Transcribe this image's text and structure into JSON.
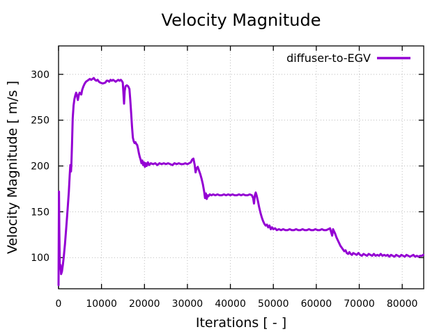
{
  "chart_data": {
    "type": "line",
    "title": "Velocity Magnitude",
    "xlabel": "Iterations [ - ]",
    "ylabel": "Velocity Magnitude [ m/s ]",
    "xlim": [
      0,
      85000
    ],
    "ylim": [
      66,
      331
    ],
    "x_ticks": [
      0,
      10000,
      20000,
      30000,
      40000,
      50000,
      60000,
      70000,
      80000
    ],
    "y_ticks": [
      100,
      150,
      200,
      250,
      300
    ],
    "grid": true,
    "grid_style": "dotted",
    "grid_color": "#bbbbbb",
    "axis_color": "#000000",
    "background_color": "#ffffff",
    "legend_position": "top-right-inside",
    "series": [
      {
        "name": "diffuser-to-EGV",
        "color": "#9400d3",
        "points": [
          [
            0,
            70
          ],
          [
            100,
            172
          ],
          [
            180,
            130
          ],
          [
            300,
            88
          ],
          [
            450,
            92
          ],
          [
            600,
            82
          ],
          [
            800,
            85
          ],
          [
            1000,
            92
          ],
          [
            1200,
            100
          ],
          [
            1500,
            115
          ],
          [
            1800,
            133
          ],
          [
            2100,
            152
          ],
          [
            2400,
            172
          ],
          [
            2600,
            190
          ],
          [
            2750,
            201
          ],
          [
            2900,
            194
          ],
          [
            3000,
            203
          ],
          [
            3150,
            226
          ],
          [
            3300,
            252
          ],
          [
            3500,
            266
          ],
          [
            3700,
            273
          ],
          [
            3900,
            277
          ],
          [
            4100,
            280
          ],
          [
            4300,
            277
          ],
          [
            4500,
            272
          ],
          [
            4700,
            277
          ],
          [
            4900,
            280
          ],
          [
            5100,
            279
          ],
          [
            5300,
            278
          ],
          [
            5500,
            283
          ],
          [
            5800,
            287
          ],
          [
            6100,
            290
          ],
          [
            6400,
            292
          ],
          [
            6700,
            293
          ],
          [
            7000,
            294
          ],
          [
            7300,
            295
          ],
          [
            7600,
            294
          ],
          [
            7900,
            295
          ],
          [
            8200,
            296
          ],
          [
            8500,
            294
          ],
          [
            8800,
            293
          ],
          [
            9100,
            294
          ],
          [
            9400,
            292
          ],
          [
            9700,
            291
          ],
          [
            10300,
            290
          ],
          [
            10900,
            291
          ],
          [
            11200,
            293
          ],
          [
            11500,
            293
          ],
          [
            11800,
            292
          ],
          [
            12100,
            294
          ],
          [
            12400,
            293
          ],
          [
            12700,
            294
          ],
          [
            13000,
            293
          ],
          [
            13300,
            292
          ],
          [
            13600,
            293
          ],
          [
            13900,
            294
          ],
          [
            14200,
            293
          ],
          [
            14500,
            294
          ],
          [
            14700,
            293
          ],
          [
            14950,
            291
          ],
          [
            15100,
            280
          ],
          [
            15250,
            268
          ],
          [
            15400,
            282
          ],
          [
            15600,
            287
          ],
          [
            15900,
            288
          ],
          [
            16200,
            287
          ],
          [
            16500,
            284
          ],
          [
            16700,
            272
          ],
          [
            16900,
            258
          ],
          [
            17100,
            243
          ],
          [
            17300,
            231
          ],
          [
            17500,
            227
          ],
          [
            17700,
            225
          ],
          [
            17900,
            226
          ],
          [
            18100,
            224
          ],
          [
            18300,
            223
          ],
          [
            18500,
            219
          ],
          [
            18700,
            214
          ],
          [
            18900,
            210
          ],
          [
            19100,
            207
          ],
          [
            19300,
            203
          ],
          [
            19500,
            206
          ],
          [
            19700,
            201
          ],
          [
            19900,
            204
          ],
          [
            20100,
            199
          ],
          [
            20300,
            203
          ],
          [
            20500,
            200
          ],
          [
            20800,
            204
          ],
          [
            21100,
            201
          ],
          [
            21500,
            203
          ],
          [
            22000,
            202
          ],
          [
            22500,
            203
          ],
          [
            23000,
            201
          ],
          [
            23500,
            203
          ],
          [
            24000,
            202
          ],
          [
            24500,
            203
          ],
          [
            25000,
            202
          ],
          [
            25500,
            203
          ],
          [
            26000,
            202
          ],
          [
            26500,
            201
          ],
          [
            27000,
            203
          ],
          [
            27500,
            202
          ],
          [
            28000,
            203
          ],
          [
            28500,
            202
          ],
          [
            29000,
            202
          ],
          [
            29500,
            203
          ],
          [
            30000,
            202
          ],
          [
            30400,
            203
          ],
          [
            30800,
            204
          ],
          [
            31100,
            207
          ],
          [
            31400,
            208
          ],
          [
            31700,
            201
          ],
          [
            31900,
            193
          ],
          [
            32100,
            197
          ],
          [
            32400,
            199
          ],
          [
            32700,
            195
          ],
          [
            33000,
            191
          ],
          [
            33300,
            186
          ],
          [
            33600,
            180
          ],
          [
            33900,
            172
          ],
          [
            34100,
            165
          ],
          [
            34300,
            170
          ],
          [
            34500,
            164
          ],
          [
            34700,
            168
          ],
          [
            34900,
            167
          ],
          [
            35200,
            169
          ],
          [
            35600,
            168
          ],
          [
            36000,
            169
          ],
          [
            36500,
            168
          ],
          [
            37000,
            169
          ],
          [
            37500,
            168
          ],
          [
            38000,
            168
          ],
          [
            38500,
            169
          ],
          [
            39000,
            168
          ],
          [
            39500,
            169
          ],
          [
            40000,
            168
          ],
          [
            40500,
            169
          ],
          [
            41000,
            168
          ],
          [
            41500,
            168
          ],
          [
            42000,
            169
          ],
          [
            42500,
            168
          ],
          [
            43000,
            169
          ],
          [
            43500,
            168
          ],
          [
            44000,
            168
          ],
          [
            44500,
            169
          ],
          [
            45000,
            168
          ],
          [
            45300,
            165
          ],
          [
            45500,
            159
          ],
          [
            45700,
            168
          ],
          [
            45900,
            171
          ],
          [
            46100,
            168
          ],
          [
            46400,
            162
          ],
          [
            46700,
            155
          ],
          [
            47000,
            149
          ],
          [
            47300,
            144
          ],
          [
            47600,
            140
          ],
          [
            47900,
            137
          ],
          [
            48200,
            135
          ],
          [
            48500,
            136
          ],
          [
            48800,
            133
          ],
          [
            49100,
            135
          ],
          [
            49400,
            131
          ],
          [
            49700,
            133
          ],
          [
            50000,
            131
          ],
          [
            50400,
            132
          ],
          [
            50800,
            130
          ],
          [
            51300,
            131
          ],
          [
            51800,
            130
          ],
          [
            52300,
            131
          ],
          [
            52800,
            130
          ],
          [
            53300,
            130
          ],
          [
            53800,
            131
          ],
          [
            54300,
            130
          ],
          [
            54800,
            130
          ],
          [
            55300,
            131
          ],
          [
            55800,
            130
          ],
          [
            56300,
            130
          ],
          [
            56800,
            131
          ],
          [
            57300,
            130
          ],
          [
            57800,
            130
          ],
          [
            58300,
            131
          ],
          [
            58800,
            130
          ],
          [
            59300,
            130
          ],
          [
            59800,
            131
          ],
          [
            60300,
            130
          ],
          [
            60800,
            130
          ],
          [
            61300,
            131
          ],
          [
            61800,
            130
          ],
          [
            62300,
            130
          ],
          [
            62800,
            131
          ],
          [
            63200,
            132
          ],
          [
            63500,
            127
          ],
          [
            63700,
            124
          ],
          [
            63900,
            131
          ],
          [
            64100,
            129
          ],
          [
            64400,
            126
          ],
          [
            64700,
            122
          ],
          [
            65000,
            119
          ],
          [
            65300,
            116
          ],
          [
            65600,
            113
          ],
          [
            65900,
            111
          ],
          [
            66200,
            109
          ],
          [
            66500,
            107
          ],
          [
            66800,
            108
          ],
          [
            67100,
            105
          ],
          [
            67400,
            104
          ],
          [
            67700,
            106
          ],
          [
            68000,
            104
          ],
          [
            68300,
            103
          ],
          [
            68600,
            105
          ],
          [
            69000,
            104
          ],
          [
            69400,
            103
          ],
          [
            69800,
            105
          ],
          [
            70200,
            103
          ],
          [
            70600,
            102
          ],
          [
            71000,
            104
          ],
          [
            71400,
            103
          ],
          [
            71800,
            102
          ],
          [
            72200,
            104
          ],
          [
            72600,
            103
          ],
          [
            73000,
            102
          ],
          [
            73400,
            104
          ],
          [
            73800,
            102
          ],
          [
            74200,
            103
          ],
          [
            74600,
            102
          ],
          [
            75000,
            104
          ],
          [
            75400,
            102
          ],
          [
            75800,
            103
          ],
          [
            76200,
            102
          ],
          [
            76600,
            103
          ],
          [
            77000,
            101
          ],
          [
            77400,
            103
          ],
          [
            77800,
            102
          ],
          [
            78200,
            101
          ],
          [
            78600,
            103
          ],
          [
            79000,
            102
          ],
          [
            79400,
            101
          ],
          [
            79800,
            103
          ],
          [
            80200,
            102
          ],
          [
            80600,
            101
          ],
          [
            81000,
            103
          ],
          [
            81400,
            102
          ],
          [
            81800,
            101
          ],
          [
            82200,
            102
          ],
          [
            82600,
            103
          ],
          [
            83000,
            101
          ],
          [
            83400,
            102
          ],
          [
            83800,
            101
          ],
          [
            84200,
            102
          ],
          [
            84600,
            102
          ],
          [
            84900,
            103
          ]
        ]
      }
    ]
  }
}
